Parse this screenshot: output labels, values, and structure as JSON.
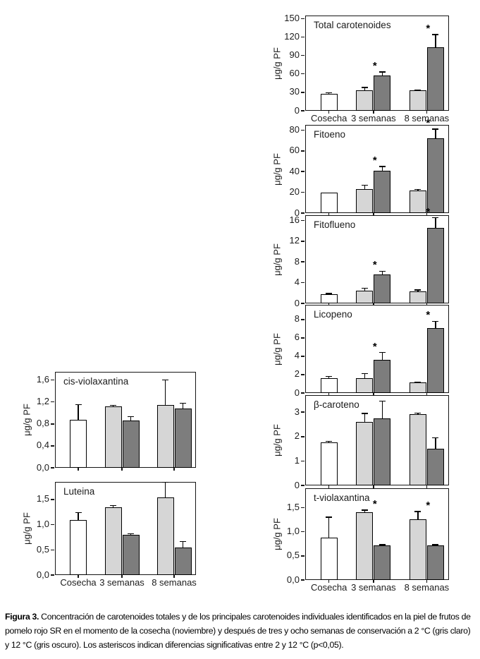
{
  "figure": {
    "caption_label": "Figura 3.",
    "caption_text": " Concentración de carotenoides totales y de los principales carotenoides individuales identificados en la piel de frutos de pomelo rojo SR en el momento de la cosecha (noviembre) y después de tres y ocho semanas de conservación a 2 °C (gris claro) y 12 °C (gris oscuro). Los asteriscos indican diferencias significativas entre 2 y 12 °C (p<0,05)."
  },
  "colors": {
    "cosecha": "#ffffff",
    "2 °C": "#d6d6d6",
    "12 °C": "#7d7d7d",
    "bar_border": "#000000"
  },
  "legend": {
    "white_bar": "Cosecha",
    "light_gray_bar": "2 °C (gris claro)",
    "dark_gray_bar": "12 °C (gris oscuro)",
    "asterisk": "diferencias significativas entre 2 y 12 °C (p<0,05)"
  },
  "chart_data": [
    {
      "type": "bar",
      "title": "Total carotenoides",
      "ylabel": "μg/g PF",
      "ylim": [
        0,
        155
      ],
      "yticks": [
        {
          "v": 0,
          "label": "0"
        },
        {
          "v": 30,
          "label": "30"
        },
        {
          "v": 60,
          "label": "60"
        },
        {
          "v": 90,
          "label": "90"
        },
        {
          "v": 120,
          "label": "120"
        },
        {
          "v": 150,
          "label": "150"
        }
      ],
      "categories": [
        "Cosecha",
        "3 semanas",
        "8 semanas"
      ],
      "bars": [
        {
          "category": "Cosecha",
          "condition": "cosecha",
          "value": 28,
          "err": 1
        },
        {
          "category": "3 semanas",
          "condition": "2 °C",
          "value": 33,
          "err": 5
        },
        {
          "category": "3 semanas",
          "condition": "12 °C",
          "value": 57,
          "err": 6
        },
        {
          "category": "8 semanas",
          "condition": "2 °C",
          "value": 33,
          "err": 1
        },
        {
          "category": "8 semanas",
          "condition": "12 °C",
          "value": 103,
          "err": 21
        }
      ],
      "significant_categories": [
        "3 semanas",
        "8 semanas"
      ]
    },
    {
      "type": "bar",
      "title": "Fitoeno",
      "ylabel": "μg/g PF",
      "ylim": [
        0,
        85
      ],
      "yticks": [
        {
          "v": 0,
          "label": "0"
        },
        {
          "v": 20,
          "label": "20"
        },
        {
          "v": 40,
          "label": "40"
        },
        {
          "v": 60,
          "label": "60"
        },
        {
          "v": 80,
          "label": "80"
        }
      ],
      "categories": [
        "Cosecha",
        "3 semanas",
        "8 semanas"
      ],
      "bars": [
        {
          "category": "Cosecha",
          "condition": "cosecha",
          "value": 20,
          "err": 0
        },
        {
          "category": "3 semanas",
          "condition": "2 °C",
          "value": 23,
          "err": 4
        },
        {
          "category": "3 semanas",
          "condition": "12 °C",
          "value": 41,
          "err": 4
        },
        {
          "category": "8 semanas",
          "condition": "2 °C",
          "value": 22,
          "err": 1
        },
        {
          "category": "8 semanas",
          "condition": "12 °C",
          "value": 72,
          "err": 9
        }
      ],
      "significant_categories": [
        "3 semanas",
        "8 semanas"
      ]
    },
    {
      "type": "bar",
      "title": "Fitoflueno",
      "ylabel": "μg/g PF",
      "ylim": [
        0,
        17
      ],
      "yticks": [
        {
          "v": 0,
          "label": "0"
        },
        {
          "v": 4,
          "label": "4"
        },
        {
          "v": 8,
          "label": "8"
        },
        {
          "v": 12,
          "label": "12"
        },
        {
          "v": 16,
          "label": "16"
        }
      ],
      "categories": [
        "Cosecha",
        "3 semanas",
        "8 semanas"
      ],
      "bars": [
        {
          "category": "Cosecha",
          "condition": "cosecha",
          "value": 1.8,
          "err": 0.1
        },
        {
          "category": "3 semanas",
          "condition": "2 °C",
          "value": 2.4,
          "err": 0.5
        },
        {
          "category": "3 semanas",
          "condition": "12 °C",
          "value": 5.6,
          "err": 0.6
        },
        {
          "category": "8 semanas",
          "condition": "2 °C",
          "value": 2.3,
          "err": 0.3
        },
        {
          "category": "8 semanas",
          "condition": "12 °C",
          "value": 14.6,
          "err": 1.9
        }
      ],
      "significant_categories": [
        "3 semanas",
        "8 semanas"
      ]
    },
    {
      "type": "bar",
      "title": "Licopeno",
      "ylabel": "μg/g PF",
      "ylim": [
        0,
        9.6
      ],
      "yticks": [
        {
          "v": 0,
          "label": "0"
        },
        {
          "v": 2,
          "label": "2"
        },
        {
          "v": 4,
          "label": "4"
        },
        {
          "v": 6,
          "label": "6"
        },
        {
          "v": 8,
          "label": "8"
        }
      ],
      "categories": [
        "Cosecha",
        "3 semanas",
        "8 semanas"
      ],
      "bars": [
        {
          "category": "Cosecha",
          "condition": "cosecha",
          "value": 1.6,
          "err": 0.2
        },
        {
          "category": "3 semanas",
          "condition": "2 °C",
          "value": 1.6,
          "err": 0.5
        },
        {
          "category": "3 semanas",
          "condition": "12 °C",
          "value": 3.6,
          "err": 0.8
        },
        {
          "category": "8 semanas",
          "condition": "2 °C",
          "value": 1.15,
          "err": 0.05
        },
        {
          "category": "8 semanas",
          "condition": "12 °C",
          "value": 7.1,
          "err": 0.7
        }
      ],
      "significant_categories": [
        "3 semanas",
        "8 semanas"
      ]
    },
    {
      "type": "bar",
      "title": "β-caroteno",
      "ylabel": "μg/g PF",
      "ylim": [
        0,
        3.7
      ],
      "yticks": [
        {
          "v": 0,
          "label": "0"
        },
        {
          "v": 1,
          "label": "1"
        },
        {
          "v": 2,
          "label": "2"
        },
        {
          "v": 3,
          "label": "3"
        }
      ],
      "categories": [
        "Cosecha",
        "3 semanas",
        "8 semanas"
      ],
      "bars": [
        {
          "category": "Cosecha",
          "condition": "cosecha",
          "value": 1.75,
          "err": 0.05
        },
        {
          "category": "3 semanas",
          "condition": "2 °C",
          "value": 2.6,
          "err": 0.35
        },
        {
          "category": "3 semanas",
          "condition": "12 °C",
          "value": 2.75,
          "err": 0.7
        },
        {
          "category": "8 semanas",
          "condition": "2 °C",
          "value": 2.93,
          "err": 0.03
        },
        {
          "category": "8 semanas",
          "condition": "12 °C",
          "value": 1.5,
          "err": 0.45
        }
      ],
      "significant_categories": []
    },
    {
      "type": "bar",
      "title": "t-violaxantina",
      "ylabel": "μg/g PF",
      "ylim": [
        0,
        1.9
      ],
      "yticks": [
        {
          "v": 0,
          "label": "0,0"
        },
        {
          "v": 0.5,
          "label": "0,5"
        },
        {
          "v": 1.0,
          "label": "1,0"
        },
        {
          "v": 1.5,
          "label": "1,5"
        }
      ],
      "categories": [
        "Cosecha",
        "3 semanas",
        "8 semanas"
      ],
      "bars": [
        {
          "category": "Cosecha",
          "condition": "cosecha",
          "value": 0.87,
          "err": 0.43
        },
        {
          "category": "3 semanas",
          "condition": "2 °C",
          "value": 1.41,
          "err": 0.04
        },
        {
          "category": "3 semanas",
          "condition": "12 °C",
          "value": 0.71,
          "err": 0.02
        },
        {
          "category": "8 semanas",
          "condition": "2 °C",
          "value": 1.25,
          "err": 0.17
        },
        {
          "category": "8 semanas",
          "condition": "12 °C",
          "value": 0.71,
          "err": 0.02
        }
      ],
      "significant_categories": [
        "3 semanas",
        "8 semanas"
      ]
    },
    {
      "type": "bar",
      "title": "cis-violaxantina",
      "ylabel": "μg/g PF",
      "ylim": [
        0,
        1.75
      ],
      "yticks": [
        {
          "v": 0,
          "label": "0,0"
        },
        {
          "v": 0.4,
          "label": "0,4"
        },
        {
          "v": 0.8,
          "label": "0,8"
        },
        {
          "v": 1.2,
          "label": "1,2"
        },
        {
          "v": 1.6,
          "label": "1,6"
        }
      ],
      "categories": [
        "Cosecha",
        "3 semanas",
        "8 semanas"
      ],
      "bars": [
        {
          "category": "Cosecha",
          "condition": "cosecha",
          "value": 0.87,
          "err": 0.28
        },
        {
          "category": "3 semanas",
          "condition": "2 °C",
          "value": 1.12,
          "err": 0.02
        },
        {
          "category": "3 semanas",
          "condition": "12 °C",
          "value": 0.86,
          "err": 0.07
        },
        {
          "category": "8 semanas",
          "condition": "2 °C",
          "value": 1.14,
          "err": 0.46
        },
        {
          "category": "8 semanas",
          "condition": "12 °C",
          "value": 1.08,
          "err": 0.1
        }
      ],
      "significant_categories": []
    },
    {
      "type": "bar",
      "title": "Luteina",
      "ylabel": "μg/g PF",
      "ylim": [
        0,
        1.85
      ],
      "yticks": [
        {
          "v": 0,
          "label": "0,0"
        },
        {
          "v": 0.5,
          "label": "0,5"
        },
        {
          "v": 1.0,
          "label": "1,0"
        },
        {
          "v": 1.5,
          "label": "1,5"
        }
      ],
      "categories": [
        "Cosecha",
        "3 semanas",
        "8 semanas"
      ],
      "bars": [
        {
          "category": "Cosecha",
          "condition": "cosecha",
          "value": 1.09,
          "err": 0.15
        },
        {
          "category": "3 semanas",
          "condition": "2 °C",
          "value": 1.35,
          "err": 0.03
        },
        {
          "category": "3 semanas",
          "condition": "12 °C",
          "value": 0.8,
          "err": 0.02
        },
        {
          "category": "8 semanas",
          "condition": "2 °C",
          "value": 1.54,
          "err": 0.3
        },
        {
          "category": "8 semanas",
          "condition": "12 °C",
          "value": 0.55,
          "err": 0.12
        }
      ],
      "significant_categories": []
    }
  ]
}
